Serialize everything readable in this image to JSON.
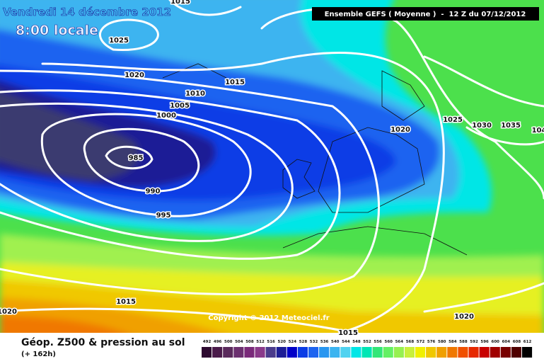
{
  "header": {
    "date": "Vendredi 14 décembre 2012",
    "time": "8:00 locale",
    "model": "Ensemble GEFS ( Moyenne )  -  12 Z du 07/12/2012"
  },
  "isobar_labels": [
    "1015",
    "1025",
    "1020",
    "1015",
    "1010",
    "1005",
    "1000",
    "985",
    "990",
    "995",
    "1020",
    "1025",
    "1030",
    "1035",
    "104",
    "1015",
    "1020",
    "1020",
    "1015"
  ],
  "copyright": "Copyright © 2012 Meteociel.fr",
  "footer": {
    "title": "Géop. Z500 & pression au sol",
    "lead": "(+ 162h)"
  },
  "legend": {
    "labels": [
      "492",
      "496",
      "500",
      "504",
      "508",
      "512",
      "516",
      "520",
      "524",
      "528",
      "532",
      "536",
      "540",
      "544",
      "548",
      "552",
      "556",
      "560",
      "564",
      "568",
      "572",
      "576",
      "580",
      "584",
      "588",
      "592",
      "596",
      "600",
      "604",
      "608",
      "612"
    ],
    "colors": [
      "#2e0a30",
      "#4a1a4a",
      "#5a2a5c",
      "#6c3070",
      "#7a2a7a",
      "#8a3a8a",
      "#4b3c8c",
      "#1e1e96",
      "#0000c8",
      "#0a3ce6",
      "#1e64f0",
      "#2896f0",
      "#3cb4f0",
      "#50d2f0",
      "#00e6e6",
      "#00e6b4",
      "#32e678",
      "#64f064",
      "#96f050",
      "#c8f03c",
      "#f0f000",
      "#f0c800",
      "#f0a000",
      "#f07800",
      "#f05000",
      "#e62800",
      "#c80000",
      "#a00000",
      "#780000",
      "#500000",
      "#000000"
    ]
  }
}
